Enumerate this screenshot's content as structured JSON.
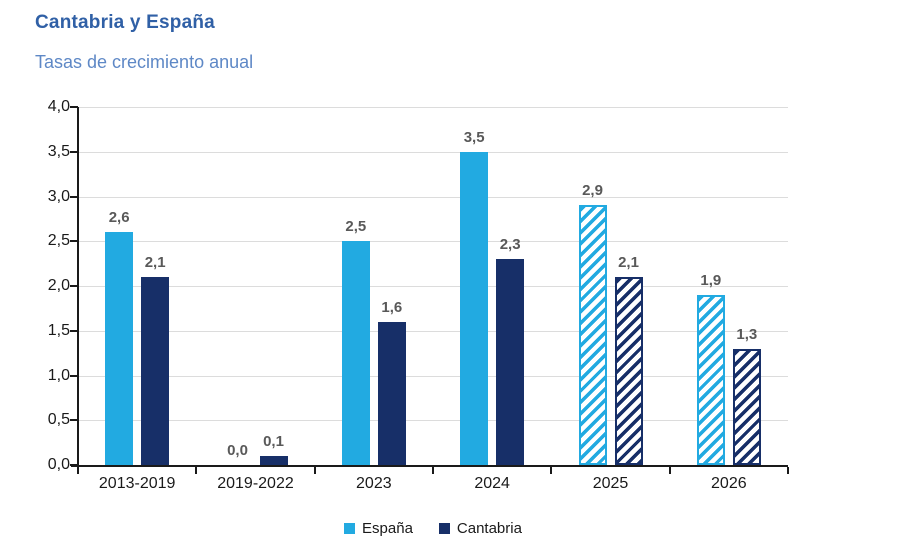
{
  "header": {
    "title": "Cantabria y España",
    "subtitle": "Tasas de crecimiento anual"
  },
  "chart_data": {
    "type": "bar",
    "categories": [
      "2013-2019",
      "2019-2022",
      "2023",
      "2024",
      "2025",
      "2026"
    ],
    "series": [
      {
        "name": "España",
        "color": "#22AAE1",
        "values": [
          2.6,
          0.0,
          2.5,
          3.5,
          2.9,
          1.9
        ]
      },
      {
        "name": "Cantabria",
        "color": "#172F68",
        "values": [
          2.1,
          0.1,
          1.6,
          2.3,
          2.1,
          1.3
        ]
      }
    ],
    "value_labels": [
      [
        "2,6",
        "0,0",
        "2,5",
        "3,5",
        "2,9",
        "1,9"
      ],
      [
        "2,1",
        "0,1",
        "1,6",
        "2,3",
        "2,1",
        "1,3"
      ]
    ],
    "hatched_categories": [
      "2025",
      "2026"
    ],
    "title": "Cantabria y España",
    "subtitle": "Tasas de crecimiento anual",
    "xlabel": "",
    "ylabel": "",
    "ylim": [
      0,
      4
    ],
    "ytick_step": 0.5,
    "ytick_labels": [
      "0,0",
      "0,5",
      "1,0",
      "1,5",
      "2,0",
      "2,5",
      "3,0",
      "3,5",
      "4,0"
    ],
    "grid": true,
    "legend_position": "bottom",
    "colors": {
      "grid": "#DCDCDC",
      "axis": "#1a1a1a",
      "value_label": "#595959",
      "title": "#3060A6",
      "subtitle": "#5E88C6"
    }
  },
  "legend": {
    "items": [
      {
        "label": "España",
        "color": "#22AAE1"
      },
      {
        "label": "Cantabria",
        "color": "#172F68"
      }
    ]
  }
}
